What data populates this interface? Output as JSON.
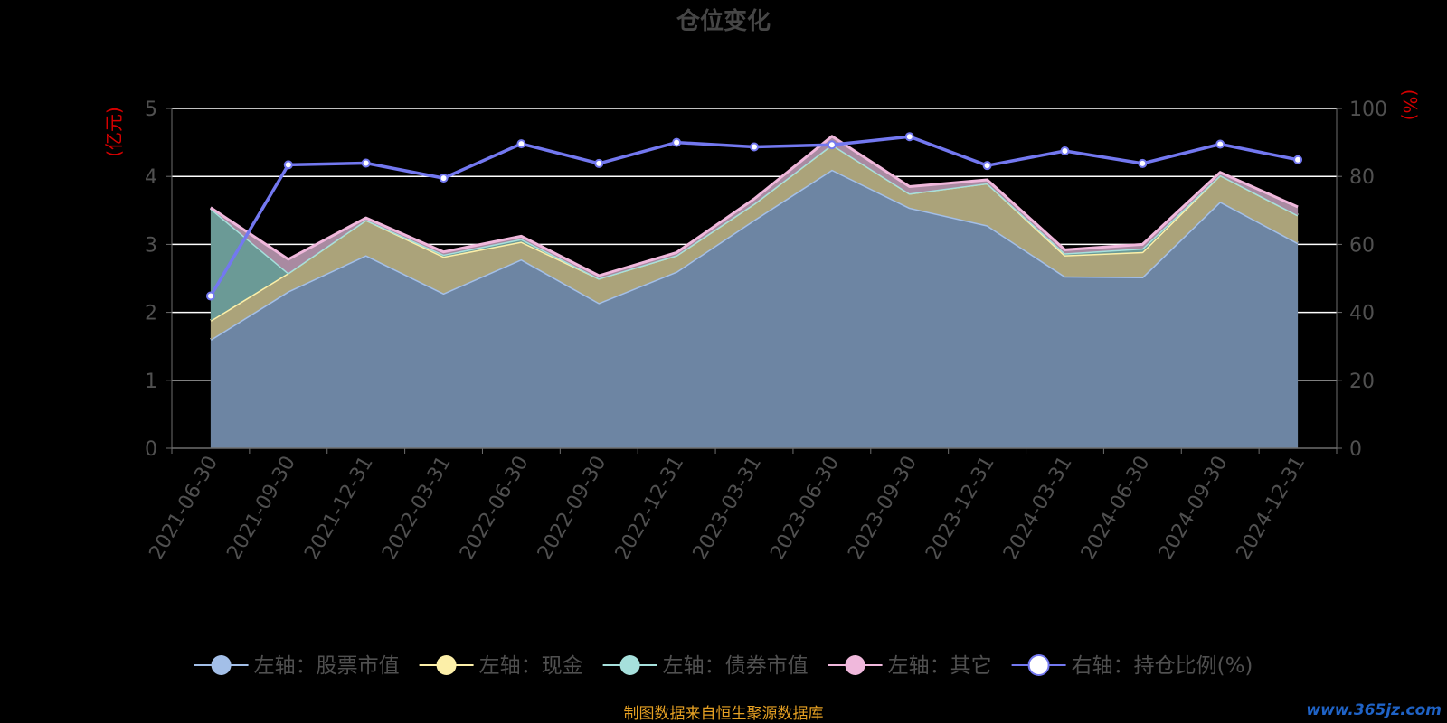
{
  "chart_data": {
    "type": "area",
    "title": "仓位变化",
    "left_axis_label": "(亿元)",
    "right_axis_label": "(%)",
    "left_ylim": [
      0,
      5
    ],
    "left_ticks": [
      0,
      1,
      2,
      3,
      4,
      5
    ],
    "right_ylim": [
      0,
      100
    ],
    "right_ticks": [
      0,
      20,
      40,
      60,
      80,
      100
    ],
    "stacked": true,
    "grid": true,
    "legend_position": "bottom",
    "categories": [
      "2021-06-30",
      "2021-09-30",
      "2021-12-31",
      "2022-03-31",
      "2022-06-30",
      "2022-09-30",
      "2022-12-31",
      "2023-03-31",
      "2023-06-30",
      "2023-09-30",
      "2023-12-31",
      "2024-03-31",
      "2024-06-30",
      "2024-09-30",
      "2024-12-31"
    ],
    "series": [
      {
        "name": "左轴：股票市值",
        "axis": "left",
        "color": "#a3bfe8",
        "fill": "#6d85a3",
        "values": [
          1.6,
          2.31,
          2.84,
          2.28,
          2.78,
          2.14,
          2.6,
          3.36,
          4.1,
          3.54,
          3.28,
          2.53,
          2.52,
          3.63,
          3.02
        ]
      },
      {
        "name": "左轴：现金",
        "axis": "left",
        "color": "#fcefa8",
        "fill": "#aba37a",
        "values": [
          0.28,
          0.27,
          0.52,
          0.54,
          0.26,
          0.36,
          0.24,
          0.24,
          0.37,
          0.21,
          0.62,
          0.31,
          0.37,
          0.39,
          0.41
        ]
      },
      {
        "name": "左轴：债券市值",
        "axis": "left",
        "color": "#a6e0dc",
        "fill": "#6b9a96",
        "values": [
          1.65,
          0.0,
          0.0,
          0.03,
          0.04,
          0.0,
          0.0,
          0.0,
          0.0,
          0.0,
          0.0,
          0.03,
          0.05,
          0.0,
          0.0
        ]
      },
      {
        "name": "左轴：其它",
        "axis": "left",
        "color": "#f0b8dc",
        "fill": "#a98aa1",
        "values": [
          0.01,
          0.2,
          0.03,
          0.04,
          0.04,
          0.04,
          0.04,
          0.07,
          0.12,
          0.1,
          0.05,
          0.05,
          0.06,
          0.04,
          0.12
        ]
      },
      {
        "name": "右轴：持仓比例(%)",
        "axis": "right",
        "type": "line",
        "color": "#7378f0",
        "values": [
          44.8,
          83.4,
          83.9,
          79.5,
          89.6,
          83.8,
          90.0,
          88.7,
          89.3,
          91.7,
          83.2,
          87.5,
          83.8,
          89.5,
          84.9
        ]
      }
    ]
  },
  "footer": {
    "source": "制图数据来自恒生聚源数据库",
    "watermark": "www.365jz.com"
  }
}
